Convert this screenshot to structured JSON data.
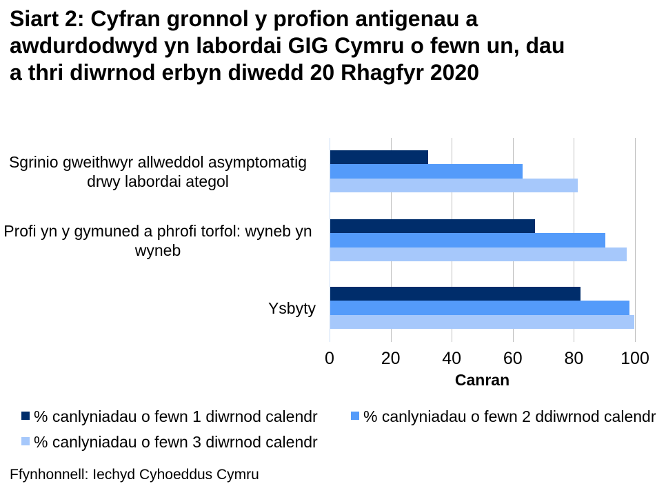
{
  "chart_data": {
    "type": "bar",
    "orientation": "horizontal",
    "title": "Siart 2: Cyfran gronnol y profion antigenau a awdurdodwyd yn labordai GIG Cymru o fewn un, dau a thri diwrnod erbyn diwedd 20 Rhagfyr 2020",
    "title_lines": [
      "Siart 2: Cyfran gronnol y profion antigenau a",
      "awdurdodwyd yn labordai GIG Cymru o fewn un, dau",
      "a thri diwrnod erbyn diwedd 20 Rhagfyr 2020"
    ],
    "categories": [
      "Sgrinio gweithwyr allweddol asymptomatig drwy labordai ategol",
      "Profi yn y gymuned a phrofi torfol: wyneb yn wyneb",
      "Ysbyty"
    ],
    "series": [
      {
        "name": "% canlyniadau o fewn 1 diwrnod calendr",
        "color": "#002D6B",
        "values": [
          32,
          67,
          82
        ]
      },
      {
        "name": "% canlyniadau o fewn 2 ddiwrnod calendr",
        "color": "#549BFA",
        "values": [
          63,
          90,
          98
        ]
      },
      {
        "name": "% canlyniadau o fewn 3 diwrnod calendr",
        "color": "#A6C8FB",
        "values": [
          81,
          97,
          99.5
        ]
      }
    ],
    "xlabel": "Canran",
    "xlim": [
      0,
      100
    ],
    "xticks": [
      0,
      20,
      40,
      60,
      80,
      100
    ],
    "gridlines": true,
    "legend_position": "bottom"
  },
  "source": "Ffynhonnell: Iechyd Cyhoeddus Cymru",
  "colors": {
    "gridline": "#BFBFBF",
    "axis_line": "#C9DDF6",
    "background": "#FFFFFF",
    "text": "#000000"
  }
}
